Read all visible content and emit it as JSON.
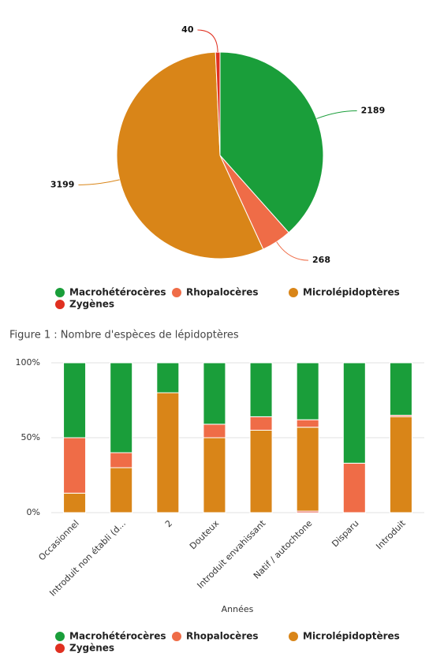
{
  "chart_data": [
    {
      "type": "pie",
      "categories": [
        "Macrohétérocères",
        "Rhopalocères",
        "Microlépidoptères",
        "Zygènes"
      ],
      "values": [
        2189,
        268,
        3199,
        40
      ],
      "colors": [
        "#1a9e3a",
        "#ef6c47",
        "#d98518",
        "#e03020"
      ],
      "legend": "bottom",
      "caption": "Figure 1 : Nombre d'espèces de lépidoptères"
    },
    {
      "type": "stacked-bar-percent",
      "categories": [
        "Occasionnel",
        "Introduit non établi (d...",
        "2",
        "Douteux",
        "Introduit envahissant",
        "Natif / autochtone",
        "Disparu",
        "Introduit"
      ],
      "series": [
        {
          "name": "Macrohétérocères",
          "color": "#1a9e3a",
          "values": [
            50,
            60,
            20,
            41,
            36,
            38,
            67,
            35
          ]
        },
        {
          "name": "Rhopalocères",
          "color": "#ef6c47",
          "values": [
            37,
            10,
            0,
            9,
            9,
            5,
            33,
            1
          ]
        },
        {
          "name": "Microlépidoptères",
          "color": "#d98518",
          "values": [
            13,
            30,
            80,
            50,
            55,
            56,
            0,
            64
          ]
        },
        {
          "name": "Zygènes",
          "color": "#e03020",
          "values": [
            0,
            0,
            0,
            0,
            0,
            1,
            0,
            0
          ]
        }
      ],
      "xlabel": "Années",
      "ylim": [
        0,
        100
      ],
      "yticks": [
        {
          "value": 0,
          "label": "0%"
        },
        {
          "value": 50,
          "label": "50%"
        },
        {
          "value": 100,
          "label": "100%"
        }
      ],
      "grid": true,
      "legend": "bottom"
    }
  ]
}
